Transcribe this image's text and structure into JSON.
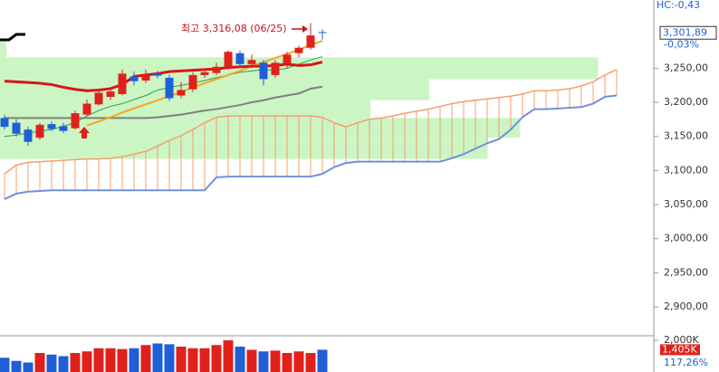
{
  "chart_data": {
    "type": "candlestick",
    "hc_label": "HC:-0,43",
    "annotation": "최고 3,316,08 (06/25)",
    "change": "-0,03%",
    "price_label": {
      "value": 3301.89,
      "label": "3,301,89"
    },
    "ylim": [
      2859,
      3350
    ],
    "yticks": [
      {
        "value": 3250,
        "label": "3,250,00"
      },
      {
        "value": 3200,
        "label": "3,200,00"
      },
      {
        "value": 3150,
        "label": "3,150,00"
      },
      {
        "value": 3100,
        "label": "3,100,00"
      },
      {
        "value": 3050,
        "label": "3,050,00"
      },
      {
        "value": 3000,
        "label": "3,000,00"
      },
      {
        "value": 2950,
        "label": "2,950,00"
      },
      {
        "value": 2900,
        "label": "2,900,00"
      }
    ],
    "up_color": "#e0211b",
    "down_color": "#1f5fd6",
    "candles": {
      "open": [
        3177,
        3170,
        3160,
        3148,
        3168,
        3165,
        3162,
        3182,
        3197,
        3208,
        3212,
        3238,
        3232,
        3242,
        3236,
        3210,
        3219,
        3240,
        3243,
        3252,
        3272,
        3256,
        3258,
        3240,
        3257,
        3272,
        3280,
        3303
      ],
      "high": [
        3182,
        3175,
        3164,
        3170,
        3172,
        3170,
        3188,
        3204,
        3220,
        3220,
        3248,
        3245,
        3248,
        3246,
        3240,
        3230,
        3244,
        3250,
        3258,
        3276,
        3276,
        3270,
        3262,
        3262,
        3274,
        3283,
        3316.08,
        3307
      ],
      "low": [
        3160,
        3150,
        3136,
        3145,
        3158,
        3155,
        3160,
        3180,
        3195,
        3203,
        3210,
        3225,
        3228,
        3235,
        3202,
        3206,
        3215,
        3236,
        3240,
        3248,
        3252,
        3250,
        3225,
        3236,
        3250,
        3266,
        3277,
        3292
      ],
      "close": [
        3164,
        3154,
        3142,
        3167,
        3161,
        3158,
        3184,
        3198,
        3214,
        3216,
        3242,
        3231,
        3240,
        3239,
        3206,
        3218,
        3240,
        3244,
        3252,
        3274,
        3256,
        3262,
        3234,
        3258,
        3270,
        3280,
        3298,
        3301.89
      ]
    },
    "moving_averages": [
      {
        "color": "#2e9e4e",
        "width": 1,
        "values": [
          3150,
          3152,
          3155,
          3158,
          3160,
          3165,
          3170,
          3180,
          3188,
          3194,
          3198,
          3204,
          3210,
          3218,
          3222,
          3225,
          3228,
          3232,
          3236,
          3240,
          3244,
          3246,
          3248,
          3247,
          3250,
          3256,
          3262,
          3267
        ]
      },
      {
        "color": "#808080",
        "width": 2,
        "values": [
          3177,
          3177,
          3177,
          3177,
          3177,
          3177,
          3177,
          3177,
          3177,
          3177,
          3177,
          3177,
          3177,
          3178,
          3180,
          3182,
          3185,
          3188,
          3190,
          3193,
          3196,
          3200,
          3203,
          3207,
          3210,
          3213,
          3220,
          3223
        ]
      },
      {
        "color": "#f5a623",
        "width": 2,
        "values": [
          null,
          null,
          null,
          null,
          null,
          null,
          null,
          3166,
          3172,
          3178,
          3185,
          3191,
          3197,
          3203,
          3209,
          3215,
          3222,
          3228,
          3234,
          3240,
          3246,
          3253,
          3259,
          3265,
          3271,
          3277,
          3284,
          3290
        ]
      },
      {
        "color": "#d9141b",
        "width": 3,
        "values": [
          3231,
          3230,
          3229,
          3228,
          3226,
          3222,
          3219,
          3217,
          3218,
          3220,
          3226,
          3238,
          3240,
          3242,
          3245,
          3246,
          3247,
          3248,
          3249,
          3251,
          3252,
          3253,
          3253,
          3254,
          3256,
          3254,
          3255,
          3259
        ]
      }
    ],
    "cloud": {
      "span_a": {
        "color": "#f4a06a",
        "values": [
          3095,
          3108,
          3112,
          3113,
          3114,
          3115,
          3116,
          3117,
          3117,
          3118,
          3120,
          3124,
          3128,
          3136,
          3144,
          3151,
          3160,
          3170,
          3178,
          3180,
          3180,
          3180,
          3180,
          3180,
          3180,
          3180,
          3180,
          3178,
          3170,
          3164,
          3170,
          3175,
          3177,
          3180,
          3184,
          3187,
          3190,
          3194,
          3198,
          3201,
          3203,
          3205,
          3207,
          3209,
          3212,
          3217,
          3217,
          3218,
          3220,
          3224,
          3230,
          3240,
          3248
        ]
      },
      "span_b": {
        "color": "#6f8fe0",
        "values": [
          3058,
          3066,
          3069,
          3070,
          3071,
          3071,
          3071,
          3071,
          3071,
          3071,
          3071,
          3071,
          3071,
          3071,
          3071,
          3071,
          3071,
          3071,
          3090,
          3091,
          3091,
          3091,
          3091,
          3091,
          3091,
          3091,
          3091,
          3095,
          3105,
          3111,
          3113,
          3113,
          3113,
          3113,
          3113,
          3113,
          3113,
          3113,
          3118,
          3124,
          3132,
          3140,
          3146,
          3160,
          3178,
          3190,
          3190,
          3191,
          3192,
          3193,
          3198,
          3208,
          3210
        ]
      }
    },
    "volume_profile": {
      "color": "#ccf5c4",
      "xlim": [
        0,
        100
      ],
      "bands": [
        {
          "from": 3266,
          "to": 3290,
          "value": 1
        },
        {
          "from": 3234,
          "to": 3266,
          "value": 92
        },
        {
          "from": 3203,
          "to": 3234,
          "value": 66
        },
        {
          "from": 3177,
          "to": 3203,
          "value": 57
        },
        {
          "from": 3148,
          "to": 3177,
          "value": 80
        },
        {
          "from": 3117,
          "to": 3148,
          "value": 75
        }
      ]
    },
    "volume": {
      "ylim": [
        0,
        2170
      ],
      "yticks": [
        {
          "value": 2000,
          "label": "2,000K"
        }
      ],
      "values": [
        900,
        700,
        600,
        1200,
        1100,
        1000,
        1200,
        1300,
        1500,
        1500,
        1450,
        1500,
        1700,
        1800,
        1750,
        1600,
        1500,
        1500,
        1700,
        2000,
        1600,
        1400,
        1300,
        1350,
        1200,
        1300,
        1200,
        1405
      ],
      "value_labels": [
        null,
        null,
        null,
        null,
        null,
        null,
        null,
        null,
        null,
        null,
        null,
        null,
        null,
        null,
        null,
        null,
        null,
        null,
        null,
        null,
        null,
        null,
        null,
        null,
        null,
        null,
        null,
        "1,405K"
      ]
    },
    "volume_change": "117,26%"
  }
}
